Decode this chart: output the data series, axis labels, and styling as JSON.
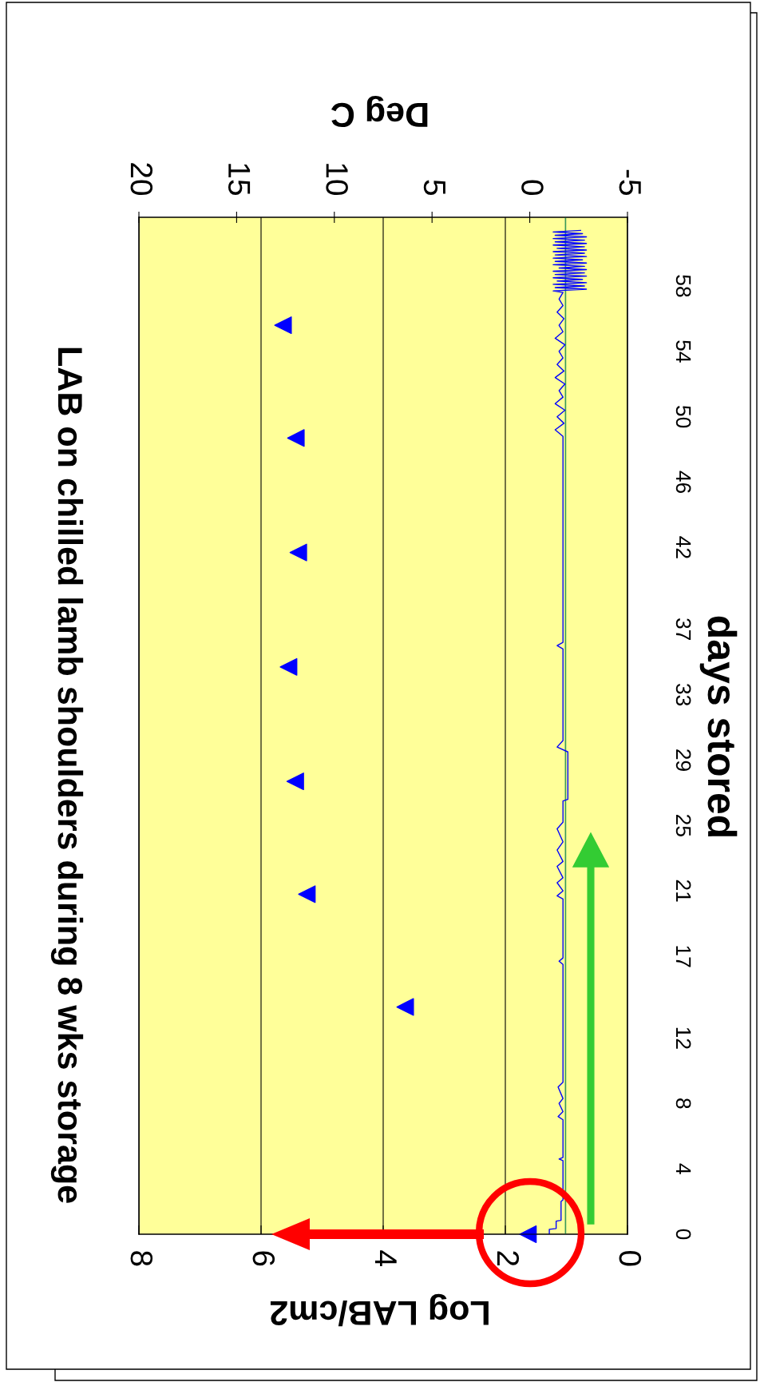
{
  "chart_data": {
    "type": "scatter",
    "title": "LAB on chilled lamb shoulders during 8 wks storage",
    "xlabel": "Log LAB/cm2",
    "ylabel": "days stored",
    "x2label": "Deg C",
    "xlim": [
      8,
      0
    ],
    "xticks": [
      0,
      2,
      4,
      6,
      8
    ],
    "ylim": [
      0,
      62.2
    ],
    "yticks": [
      0,
      4,
      8,
      12,
      17,
      21,
      25,
      29,
      33,
      37,
      42,
      46,
      50,
      54,
      58
    ],
    "x2lim": [
      20,
      -5
    ],
    "x2ticks": [
      -5,
      0,
      5,
      10,
      15,
      20
    ],
    "grid": "x",
    "line_style": "solid",
    "ref_lines": [
      {
        "axis": "x2",
        "value": -1.83,
        "color": "#3c9a5a"
      }
    ],
    "series": [
      {
        "color": "#0000ff",
        "marker": "triangle",
        "x": [
          1.63,
          3.64,
          5.25,
          5.44,
          5.55,
          5.39,
          5.43,
          5.64
        ],
        "values": [
          0,
          13.9,
          20.8,
          27.7,
          34.7,
          41.7,
          48.7,
          55.6
        ]
      },
      {
        "type": "line",
        "axis": "x2",
        "color": "#0000ff",
        "x": [
          -1.0,
          -1.0,
          -1.35,
          -1.35,
          -1.6,
          -1.6,
          -1.7,
          -1.7,
          -1.5,
          -1.7,
          -1.7,
          -1.45,
          -1.7,
          -1.5,
          -1.7,
          -1.45,
          -1.7,
          -1.7,
          -1.5,
          -1.7,
          -1.7,
          -1.4,
          -1.7,
          -1.4,
          -1.7,
          -1.4,
          -1.7,
          -1.4,
          -1.7,
          -1.4,
          -1.7,
          -1.7,
          -1.95,
          -1.95,
          -1.4,
          -1.7,
          -1.7,
          -1.4,
          -1.7,
          -1.7,
          -1.3,
          -1.75,
          -1.4,
          -1.8,
          -1.3,
          -1.7,
          -1.5,
          -1.8,
          -1.3,
          -1.75,
          -1.4,
          -1.7,
          -1.5,
          -1.8,
          -1.3,
          -1.7,
          -1.5,
          -1.75,
          -1.4,
          -1.7,
          -1.5,
          -1.7,
          -1.2,
          -2.9,
          -1.3,
          -2.8,
          -1.2,
          -2.9,
          -1.4,
          -2.7,
          -1.2,
          -2.9,
          -1.3,
          -2.8,
          -1.2,
          -2.9,
          -1.5,
          -2.8,
          -1.2,
          -2.9,
          -1.3,
          -2.7,
          -1.2,
          -2.9,
          -1.3,
          -2.8,
          -1.2,
          -2.9,
          -1.4,
          -2.8,
          -1.2,
          -2.9,
          -1.3,
          -2.8,
          -1.2,
          -2.9,
          -1.3,
          -2.7,
          -1.2,
          -2.6
        ],
        "values": [
          0,
          0.3,
          0.35,
          0.8,
          0.85,
          2.0,
          2.1,
          4.5,
          4.6,
          4.7,
          7.0,
          7.2,
          7.5,
          8.0,
          8.3,
          9.0,
          9.3,
          16.5,
          16.7,
          16.9,
          20.5,
          20.7,
          21.0,
          21.5,
          21.8,
          22.5,
          22.8,
          23.5,
          24.0,
          24.8,
          25.2,
          26.5,
          26.6,
          29.5,
          29.8,
          30.2,
          35.8,
          36.0,
          36.2,
          48.8,
          49.2,
          49.6,
          50.0,
          50.4,
          50.8,
          51.2,
          51.6,
          52.0,
          52.4,
          52.8,
          53.2,
          53.6,
          54.0,
          54.4,
          54.8,
          55.2,
          55.6,
          56.0,
          56.4,
          56.8,
          57.2,
          57.6,
          57.7,
          57.8,
          57.9,
          58.0,
          58.1,
          58.2,
          58.3,
          58.4,
          58.5,
          58.6,
          58.7,
          58.8,
          58.9,
          59.0,
          59.1,
          59.2,
          59.3,
          59.4,
          59.5,
          59.6,
          59.7,
          59.8,
          59.9,
          60.0,
          60.1,
          60.2,
          60.3,
          60.4,
          60.5,
          60.6,
          60.7,
          60.8,
          60.9,
          61.0,
          61.1,
          61.2,
          61.3,
          61.4
        ]
      }
    ]
  }
}
